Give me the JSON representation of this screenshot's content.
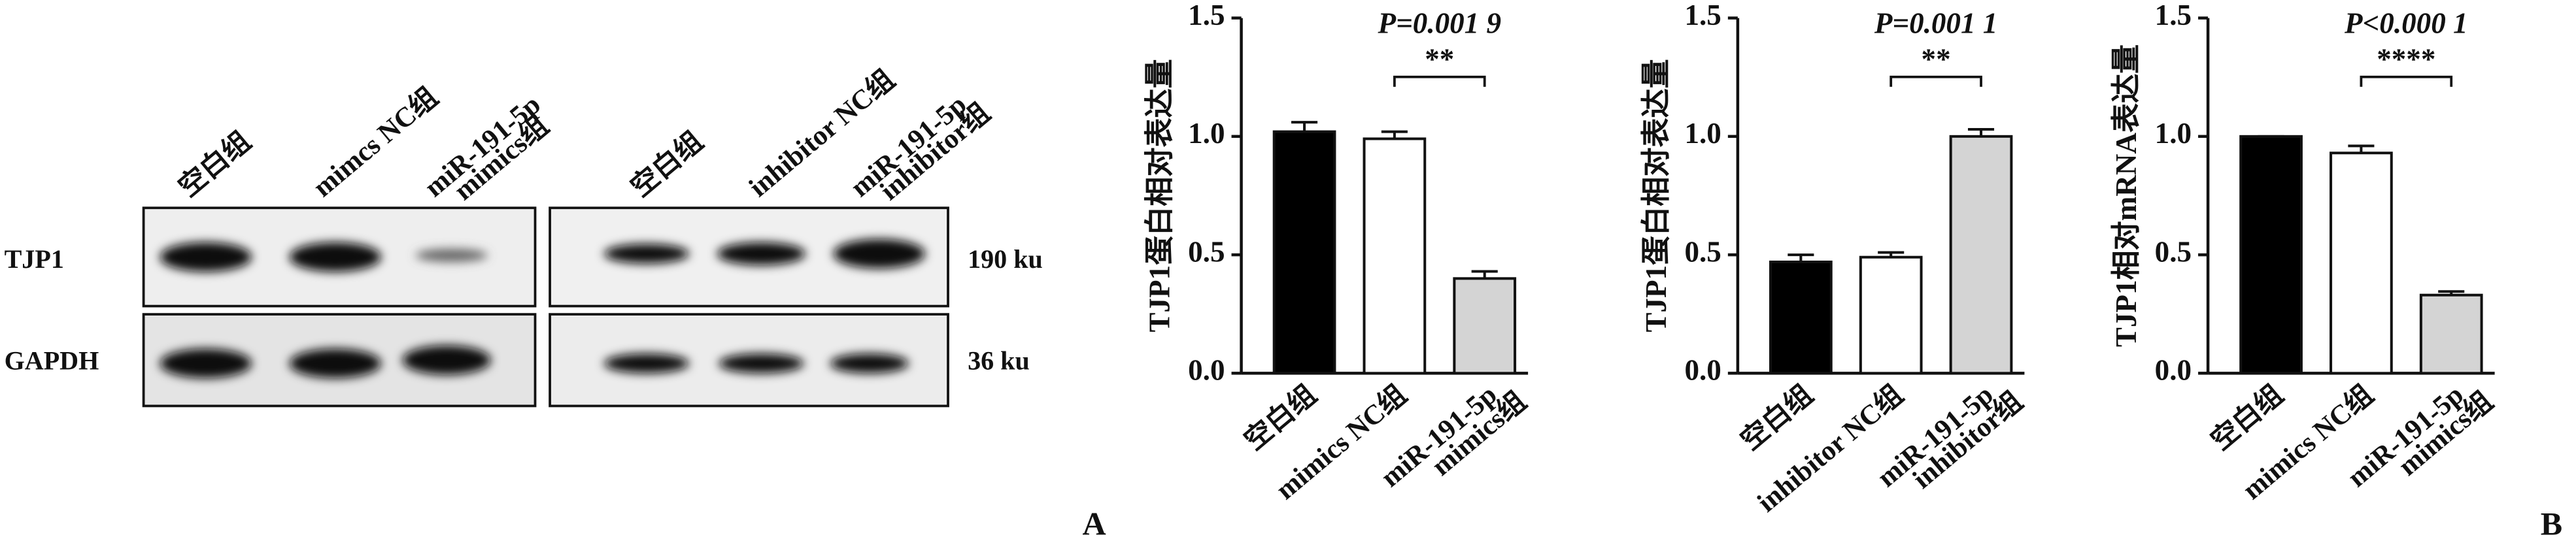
{
  "blot": {
    "lanes_left": [
      [
        "空白组"
      ],
      [
        "mimcs NC组"
      ],
      [
        "miR-191-5p",
        "mimics组"
      ]
    ],
    "lanes_right": [
      [
        "空白组"
      ],
      [
        "inhibitor NC组"
      ],
      [
        "miR-191-5p",
        "inhibitor组"
      ]
    ],
    "rows": [
      "TJP1",
      "GAPDH"
    ],
    "sizes": [
      "190 ku",
      "36 ku"
    ]
  },
  "panel_labels": [
    "A",
    "B"
  ],
  "chart_data": [
    {
      "type": "bar",
      "y_label": "TJP1蛋白相对表达量",
      "annotation": "P=0.001 9",
      "significance": "**",
      "categories": [
        [
          "空白组"
        ],
        [
          "mimics NC组"
        ],
        [
          "miR-191-5p",
          "mimics组"
        ]
      ],
      "values": [
        1.02,
        0.99,
        0.4
      ],
      "errors": [
        0.04,
        0.03,
        0.03
      ],
      "colors": [
        "#000000",
        "#ffffff",
        "#d4d4d4"
      ],
      "ylim": [
        0,
        1.5
      ],
      "yticks": [
        {
          "value": 0,
          "label": "0.0"
        },
        0.5,
        {
          "value": 1,
          "label": "1.0"
        },
        1.5
      ]
    },
    {
      "type": "bar",
      "y_label": "TJP1蛋白相对表达量",
      "annotation": "P=0.001 1",
      "significance": "**",
      "categories": [
        [
          "空白组"
        ],
        [
          "inhibitor NC组"
        ],
        [
          "miR-191-5p",
          "inhibitor组"
        ]
      ],
      "values": [
        0.47,
        0.49,
        1.0
      ],
      "errors": [
        0.03,
        0.02,
        0.03
      ],
      "colors": [
        "#000000",
        "#ffffff",
        "#d4d4d4"
      ],
      "ylim": [
        0,
        1.5
      ],
      "yticks": [
        {
          "value": 0,
          "label": "0.0"
        },
        0.5,
        {
          "value": 1,
          "label": "1.0"
        },
        1.5
      ]
    },
    {
      "type": "bar",
      "y_label": "TJP1相对mRNA表达量",
      "annotation": "P<0.000 1",
      "significance": "****",
      "categories": [
        [
          "空白组"
        ],
        [
          "mimics NC组"
        ],
        [
          "miR-191-5p",
          "mimics组"
        ]
      ],
      "values": [
        1.0,
        0.93,
        0.33
      ],
      "errors": [
        0,
        0.03,
        0.015
      ],
      "colors": [
        "#000000",
        "#ffffff",
        "#d4d4d4"
      ],
      "ylim": [
        0,
        1.5
      ],
      "yticks": [
        {
          "value": 0,
          "label": "0.0"
        },
        0.5,
        {
          "value": 1,
          "label": "1.0"
        },
        1.5
      ]
    }
  ]
}
